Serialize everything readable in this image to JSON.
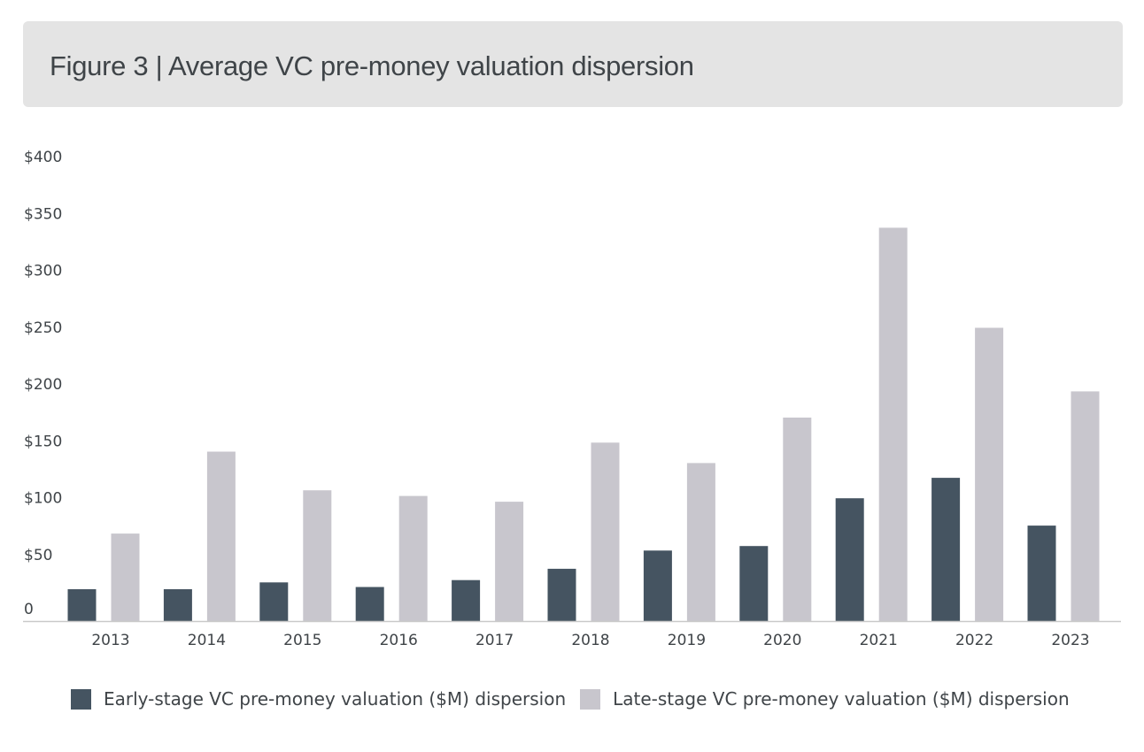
{
  "header": {
    "title": "Figure 3 | Average VC pre-money valuation dispersion"
  },
  "colors": {
    "early": "#455461",
    "late": "#c8c6cd",
    "axis": "#c9c9c9"
  },
  "chart_data": {
    "type": "bar",
    "title": "Figure 3 | Average VC pre-money valuation dispersion",
    "xlabel": "",
    "ylabel": "",
    "ylim": [
      0,
      400
    ],
    "yticks": [
      {
        "value": 0,
        "label": "0"
      },
      {
        "value": 50,
        "label": "$50"
      },
      {
        "value": 100,
        "label": "$100"
      },
      {
        "value": 150,
        "label": "$150"
      },
      {
        "value": 200,
        "label": "$200"
      },
      {
        "value": 250,
        "label": "$250"
      },
      {
        "value": 300,
        "label": "$300"
      },
      {
        "value": 350,
        "label": "$350"
      },
      {
        "value": 400,
        "label": "$400"
      }
    ],
    "categories": [
      "2013",
      "2014",
      "2015",
      "2016",
      "2017",
      "2018",
      "2019",
      "2020",
      "2021",
      "2022",
      "2023"
    ],
    "series": [
      {
        "name": "Early-stage VC pre-money valuation ($M) dispersion",
        "key": "early",
        "values": [
          28,
          28,
          34,
          30,
          36,
          46,
          62,
          66,
          108,
          126,
          84
        ]
      },
      {
        "name": "Late-stage VC pre-money valuation ($M) dispersion",
        "key": "late",
        "values": [
          77,
          149,
          115,
          110,
          105,
          157,
          139,
          179,
          346,
          258,
          202
        ]
      }
    ],
    "legend_position": "bottom",
    "grid": false
  }
}
